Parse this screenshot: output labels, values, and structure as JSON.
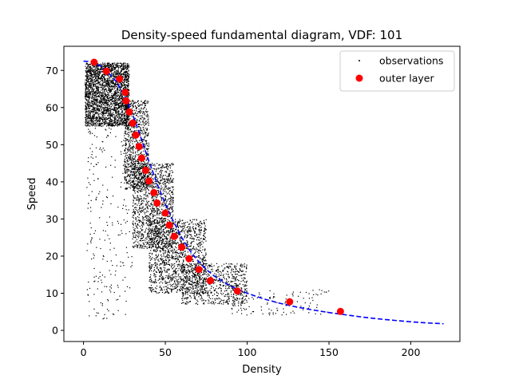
{
  "chart_data": {
    "type": "scatter",
    "title": "Density-speed fundamental diagram, VDF: 101",
    "xlabel": "Density",
    "ylabel": "Speed",
    "xlim": [
      -12,
      230
    ],
    "ylim": [
      -3,
      76.5
    ],
    "xticks": [
      0,
      50,
      100,
      150,
      200
    ],
    "yticks": [
      0,
      10,
      20,
      30,
      40,
      50,
      60,
      70
    ],
    "grid": false,
    "legend_position": "top-right",
    "series": [
      {
        "name": "observations",
        "kind": "scatter",
        "marker": "dot",
        "color": "#000000",
        "clusters": [
          {
            "x_range": [
              1,
              28
            ],
            "y_range": [
              55,
              72
            ],
            "approx_count": 2600
          },
          {
            "x_range": [
              25,
              40
            ],
            "y_range": [
              38,
              62
            ],
            "approx_count": 900
          },
          {
            "x_range": [
              30,
              55
            ],
            "y_range": [
              22,
              45
            ],
            "approx_count": 1200
          },
          {
            "x_range": [
              40,
              75
            ],
            "y_range": [
              10,
              30
            ],
            "approx_count": 1400
          },
          {
            "x_range": [
              60,
              100
            ],
            "y_range": [
              7,
              18
            ],
            "approx_count": 700
          },
          {
            "x_range": [
              90,
              150
            ],
            "y_range": [
              4,
              11
            ],
            "approx_count": 120
          },
          {
            "x_range": [
              2,
              30
            ],
            "y_range": [
              3,
              55
            ],
            "approx_count": 250
          }
        ]
      },
      {
        "name": "outer layer",
        "kind": "scatter",
        "marker": "circle",
        "color": "#ff0000",
        "x": [
          6.5,
          14,
          22,
          25.5,
          26,
          28,
          30,
          32,
          34,
          35.5,
          38,
          40,
          43,
          45,
          50,
          52.5,
          55.5,
          60,
          64.5,
          70.5,
          77.5,
          94,
          126,
          157
        ],
        "y": [
          72.2,
          69.8,
          67.7,
          64.1,
          61.8,
          58.8,
          55.8,
          52.6,
          49.5,
          46.4,
          43.1,
          40.2,
          37.1,
          34.3,
          31.6,
          28.3,
          25.3,
          22.4,
          19.3,
          16.4,
          13.4,
          10.6,
          7.7,
          5.1
        ]
      },
      {
        "name": "",
        "kind": "line",
        "style": "dashed",
        "color": "#0000ff",
        "x": [
          0,
          5,
          10,
          15,
          20,
          25,
          30,
          35,
          40,
          45,
          50,
          55,
          60,
          65,
          70,
          75,
          80,
          90,
          100,
          110,
          120,
          130,
          140,
          150,
          160,
          170,
          180,
          190,
          200,
          210,
          220
        ],
        "y": [
          72.5,
          72.3,
          71.3,
          69.5,
          67,
          63.3,
          58.2,
          52,
          45.5,
          39.5,
          34,
          29.3,
          25,
          21.5,
          18.7,
          16.4,
          14.6,
          11.9,
          10,
          8.5,
          7.3,
          6.3,
          5.5,
          4.8,
          4.2,
          3.6,
          3.1,
          2.7,
          2.3,
          2,
          1.8
        ]
      }
    ]
  }
}
